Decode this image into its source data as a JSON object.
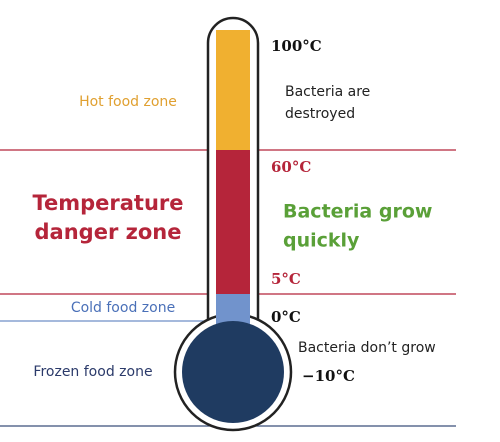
{
  "zones": [
    {
      "label": [
        "Hot food zone"
      ]
    },
    {
      "label": [
        "Temperature",
        "danger zone"
      ]
    },
    {
      "label": [
        "Cold food zone"
      ]
    },
    {
      "label": [
        "Frozen food zone"
      ]
    }
  ],
  "temperatures": [
    "100°C",
    "60°C",
    "5°C",
    "0°C",
    "−10°C"
  ],
  "notes": [
    {
      "lines": [
        "Bacteria are",
        "destroyed"
      ]
    },
    {
      "lines": [
        "Bacteria grow",
        "quickly"
      ]
    },
    {
      "lines": [
        "Bacteria don’t grow"
      ]
    }
  ]
}
